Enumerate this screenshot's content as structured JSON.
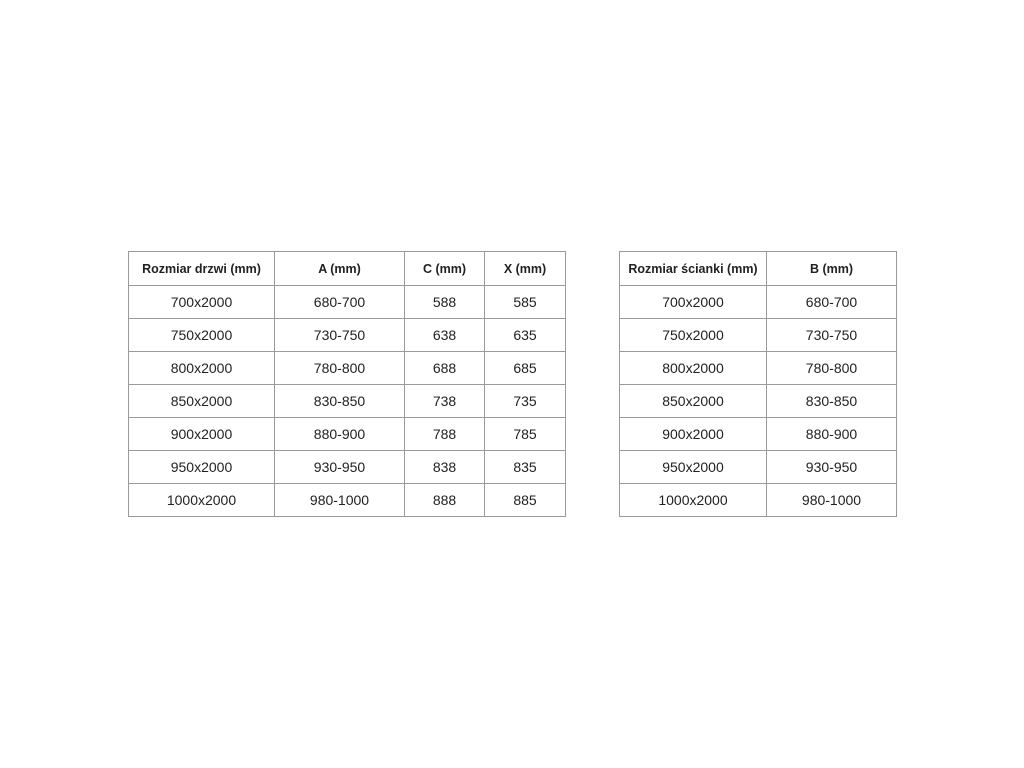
{
  "door_table": {
    "headers": [
      "Rozmiar drzwi (mm)",
      "A (mm)",
      "C (mm)",
      "X (mm)"
    ],
    "rows": [
      [
        "700x2000",
        "680-700",
        "588",
        "585"
      ],
      [
        "750x2000",
        "730-750",
        "638",
        "635"
      ],
      [
        "800x2000",
        "780-800",
        "688",
        "685"
      ],
      [
        "850x2000",
        "830-850",
        "738",
        "735"
      ],
      [
        "900x2000",
        "880-900",
        "788",
        "785"
      ],
      [
        "950x2000",
        "930-950",
        "838",
        "835"
      ],
      [
        "1000x2000",
        "980-1000",
        "888",
        "885"
      ]
    ]
  },
  "wall_table": {
    "headers": [
      "Rozmiar ścianki (mm)",
      "B (mm)"
    ],
    "rows": [
      [
        "700x2000",
        "680-700"
      ],
      [
        "750x2000",
        "730-750"
      ],
      [
        "800x2000",
        "780-800"
      ],
      [
        "850x2000",
        "830-850"
      ],
      [
        "900x2000",
        "880-900"
      ],
      [
        "950x2000",
        "930-950"
      ],
      [
        "1000x2000",
        "980-1000"
      ]
    ]
  }
}
